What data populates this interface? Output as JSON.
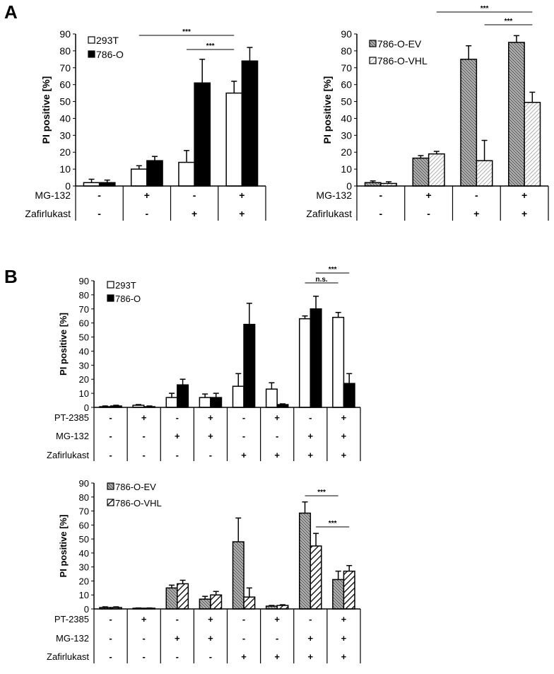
{
  "panel_labels": [
    "A",
    "B"
  ],
  "chart_data": [
    {
      "type": "bar",
      "panel": "A",
      "ylabel": "PI positive [%]",
      "ylim": [
        0,
        90
      ],
      "yticks": [
        0,
        10,
        20,
        30,
        40,
        50,
        60,
        70,
        80,
        90
      ],
      "conditions": [
        {
          "label": "MG-132",
          "values": [
            "-",
            "+",
            "-",
            "+"
          ]
        },
        {
          "label": "Zafirlukast",
          "values": [
            "-",
            "-",
            "+",
            "+"
          ]
        }
      ],
      "legend_position": "top-left",
      "series": [
        {
          "name": "293T",
          "fill": "#ffffff",
          "pattern": "none",
          "values": [
            2,
            10,
            14,
            55
          ],
          "error": [
            2,
            2,
            7,
            7
          ]
        },
        {
          "name": "786-O",
          "fill": "#000000",
          "pattern": "none",
          "values": [
            2,
            15,
            61,
            74
          ],
          "error": [
            1.5,
            2.5,
            14,
            8
          ]
        }
      ],
      "significance": [
        {
          "label": "***",
          "from": [
            1,
            0
          ],
          "to": [
            3,
            0
          ]
        },
        {
          "label": "***",
          "from": [
            2,
            0
          ],
          "to": [
            3,
            0
          ]
        }
      ]
    },
    {
      "type": "bar",
      "panel": "A",
      "ylabel": "PI positive [%]",
      "ylim": [
        0,
        90
      ],
      "yticks": [
        0,
        10,
        20,
        30,
        40,
        50,
        60,
        70,
        80,
        90
      ],
      "conditions": [
        {
          "label": "MG-132",
          "values": [
            "-",
            "+",
            "-",
            "+"
          ]
        },
        {
          "label": "Zafirlukast",
          "values": [
            "-",
            "-",
            "+",
            "+"
          ]
        }
      ],
      "legend_position": "top-left",
      "series": [
        {
          "name": "786-O-EV",
          "fill": "#8c8c8c",
          "pattern": "dense-back-diagonal",
          "values": [
            2,
            16.5,
            75,
            85
          ],
          "error": [
            1,
            1.5,
            8,
            4
          ]
        },
        {
          "name": "786-O-VHL",
          "fill": "#e6e6e6",
          "pattern": "light-forward-diagonal",
          "values": [
            1.5,
            19,
            15,
            49.5
          ],
          "error": [
            1,
            1.5,
            12,
            6
          ]
        }
      ],
      "significance": [
        {
          "label": "***",
          "from": [
            1,
            1
          ],
          "to": [
            3,
            1
          ]
        },
        {
          "label": "***",
          "from": [
            2,
            1
          ],
          "to": [
            3,
            1
          ]
        }
      ]
    },
    {
      "type": "bar",
      "panel": "B",
      "ylabel": "PI positive [%]",
      "ylim": [
        0,
        90
      ],
      "yticks": [
        0,
        10,
        20,
        30,
        40,
        50,
        60,
        70,
        80,
        90
      ],
      "conditions": [
        {
          "label": "PT-2385",
          "values": [
            "-",
            "+",
            "-",
            "+",
            "-",
            "+",
            "-",
            "+"
          ]
        },
        {
          "label": "MG-132",
          "values": [
            "-",
            "-",
            "+",
            "+",
            "-",
            "-",
            "+",
            "+"
          ]
        },
        {
          "label": "Zafirlukast",
          "values": [
            "-",
            "-",
            "-",
            "-",
            "+",
            "+",
            "+",
            "+"
          ]
        }
      ],
      "legend_position": "top-left",
      "series": [
        {
          "name": "293T",
          "fill": "#ffffff",
          "pattern": "none",
          "values": [
            0.5,
            1.5,
            7,
            7,
            15,
            13,
            63,
            64
          ],
          "error": [
            0.5,
            0.5,
            3,
            2.5,
            9,
            4.5,
            2,
            3.5
          ]
        },
        {
          "name": "786-O",
          "fill": "#000000",
          "pattern": "none",
          "values": [
            1,
            0.5,
            16,
            7,
            59,
            2,
            70,
            17
          ],
          "error": [
            0.5,
            0.5,
            4,
            3,
            15,
            0.5,
            9,
            7
          ]
        }
      ],
      "significance": [
        {
          "label": "n.s.",
          "from": [
            6,
            0
          ],
          "to": [
            7,
            0
          ]
        },
        {
          "label": "***",
          "from": [
            6,
            1
          ],
          "to": [
            7,
            1
          ]
        }
      ]
    },
    {
      "type": "bar",
      "panel": "B",
      "ylabel": "PI positive [%]",
      "ylim": [
        0,
        90
      ],
      "yticks": [
        0,
        10,
        20,
        30,
        40,
        50,
        60,
        70,
        80,
        90
      ],
      "conditions": [
        {
          "label": "PT-2385",
          "values": [
            "-",
            "+",
            "-",
            "+",
            "-",
            "+",
            "-",
            "+"
          ]
        },
        {
          "label": "MG-132",
          "values": [
            "-",
            "-",
            "+",
            "+",
            "-",
            "-",
            "+",
            "+"
          ]
        },
        {
          "label": "Zafirlukast",
          "values": [
            "-",
            "-",
            "-",
            "-",
            "+",
            "+",
            "+",
            "+"
          ]
        }
      ],
      "legend_position": "top-left",
      "series": [
        {
          "name": "786-O-EV",
          "fill": "#8c8c8c",
          "pattern": "dense-back-diagonal",
          "values": [
            1,
            0.5,
            15,
            7,
            48,
            2,
            68.5,
            21
          ],
          "error": [
            0.5,
            0.2,
            2,
            2,
            17,
            0.5,
            8,
            6
          ]
        },
        {
          "name": "786-O-VHL",
          "fill": "#ffffff",
          "pattern": "bold-forward-diagonal",
          "values": [
            1,
            0.5,
            18,
            10,
            8.5,
            2.5,
            45,
            27
          ],
          "error": [
            0.5,
            0.2,
            2.5,
            2.5,
            6.5,
            0.5,
            9,
            4
          ]
        }
      ],
      "significance": [
        {
          "label": "***",
          "from": [
            6,
            0
          ],
          "to": [
            7,
            0
          ]
        },
        {
          "label": "***",
          "from": [
            6,
            1
          ],
          "to": [
            7,
            1
          ]
        }
      ]
    }
  ]
}
